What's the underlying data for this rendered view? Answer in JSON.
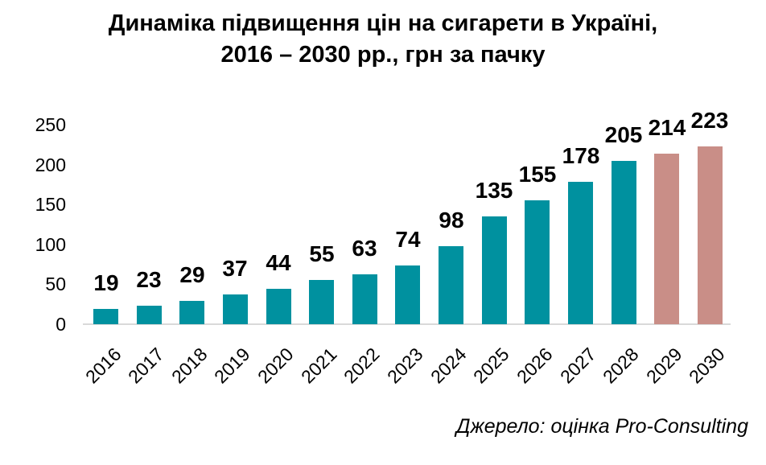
{
  "title": {
    "line1": "Динаміка підвищення цін на сигарети в Україні,",
    "line2": "2016 – 2030 рр., грн за пачку"
  },
  "source_note": "Джерело: оцінка Pro-Consulting",
  "chart_data": {
    "type": "bar",
    "title": "Динаміка підвищення цін на сигарети в Україні, 2016 – 2030 рр., грн за пачку",
    "categories": [
      "2016",
      "2017",
      "2018",
      "2019",
      "2020",
      "2021",
      "2022",
      "2023",
      "2024",
      "2025",
      "2026",
      "2027",
      "2028",
      "2029",
      "2030"
    ],
    "values": [
      19,
      23,
      29,
      37,
      44,
      55,
      63,
      74,
      98,
      135,
      155,
      178,
      205,
      214,
      223
    ],
    "bar_roles": [
      "actual",
      "actual",
      "actual",
      "actual",
      "actual",
      "actual",
      "actual",
      "actual",
      "actual",
      "actual",
      "actual",
      "actual",
      "actual",
      "forecast",
      "forecast"
    ],
    "colors": {
      "actual": "#00919F",
      "forecast": "#C98E87",
      "axis_line": "#D9D9D9",
      "text": "#000000"
    },
    "y_ticks": [
      0,
      50,
      100,
      150,
      200,
      250
    ],
    "ylim": [
      0,
      250
    ],
    "xlabel": "",
    "ylabel": "",
    "data_labels": true,
    "grid": false,
    "legend": false,
    "x_tick_rotation": 45
  }
}
